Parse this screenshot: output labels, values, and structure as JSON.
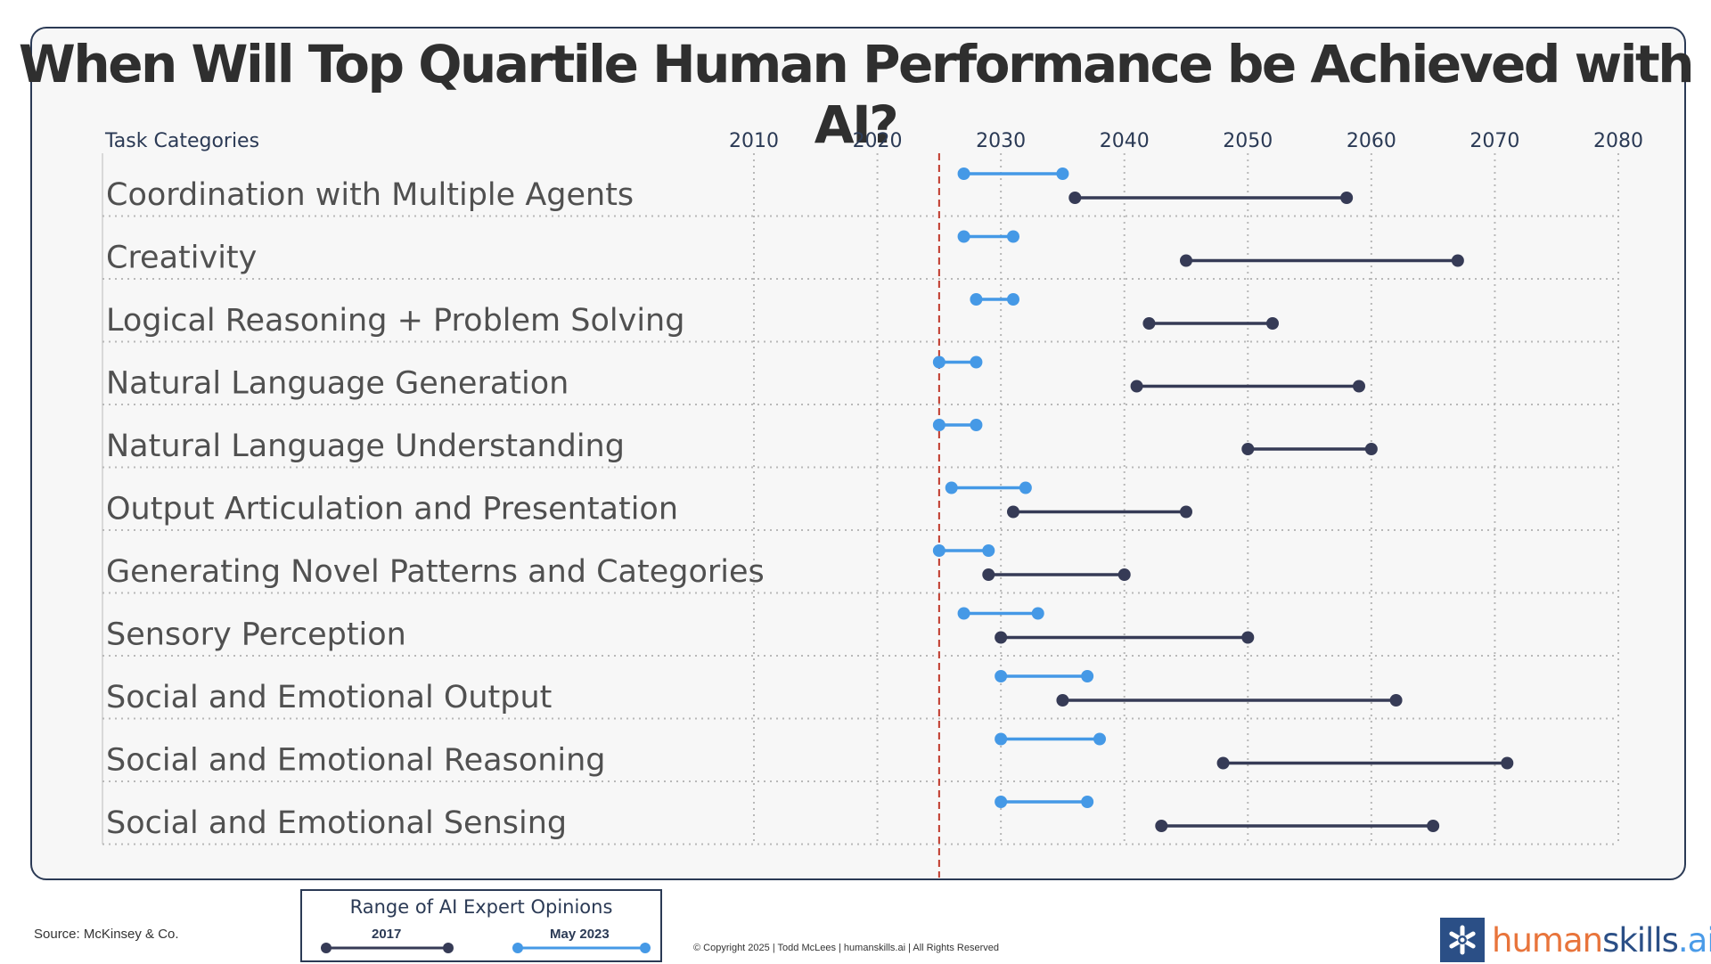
{
  "title": "When Will Top Quartile Human Performance be Achieved with AI?",
  "source": "Source: McKinsey & Co.",
  "copyright": "© Copyright 2025 |  Todd McLees  |  humanskills.ai  | All Rights Reserved",
  "legend": {
    "title": "Range of AI Expert Opinions",
    "key_2017": "2017",
    "key_2023": "May 2023"
  },
  "logo": {
    "part1": "human",
    "part2": "skills",
    "part3": ".ai",
    "icon": "asterisk-icon"
  },
  "colors": {
    "series_2017": "#363b56",
    "series_2023": "#4599e6",
    "reference_line": "#c0392b",
    "frame": "#2b3a55"
  },
  "chart_data": {
    "type": "dumbbell",
    "title": "When Will Top Quartile Human Performance be Achieved with AI?",
    "category_axis_title": "Task Categories",
    "xlim": [
      2010,
      2080
    ],
    "xticks": [
      "2010",
      "2020",
      "2030",
      "2040",
      "2050",
      "2060",
      "2070",
      "2080"
    ],
    "reference_year": 2025,
    "grid": true,
    "categories": [
      "Coordination with Multiple Agents",
      "Creativity",
      "Logical Reasoning + Problem Solving",
      "Natural Language Generation",
      "Natural Language Understanding",
      "Output Articulation and Presentation",
      "Generating Novel Patterns and Categories",
      "Sensory Perception",
      "Social and Emotional Output",
      "Social and Emotional Reasoning",
      "Social and Emotional Sensing"
    ],
    "series": [
      {
        "name": "May 2023",
        "ranges": [
          [
            2027,
            2035
          ],
          [
            2027,
            2031
          ],
          [
            2028,
            2031
          ],
          [
            2025,
            2028
          ],
          [
            2025,
            2028
          ],
          [
            2026,
            2032
          ],
          [
            2025,
            2029
          ],
          [
            2027,
            2033
          ],
          [
            2030,
            2037
          ],
          [
            2030,
            2038
          ],
          [
            2030,
            2037
          ]
        ]
      },
      {
        "name": "2017",
        "ranges": [
          [
            2036,
            2058
          ],
          [
            2045,
            2067
          ],
          [
            2042,
            2052
          ],
          [
            2041,
            2059
          ],
          [
            2050,
            2060
          ],
          [
            2031,
            2045
          ],
          [
            2029,
            2040
          ],
          [
            2030,
            2050
          ],
          [
            2035,
            2062
          ],
          [
            2048,
            2071
          ],
          [
            2043,
            2065
          ]
        ]
      }
    ]
  }
}
